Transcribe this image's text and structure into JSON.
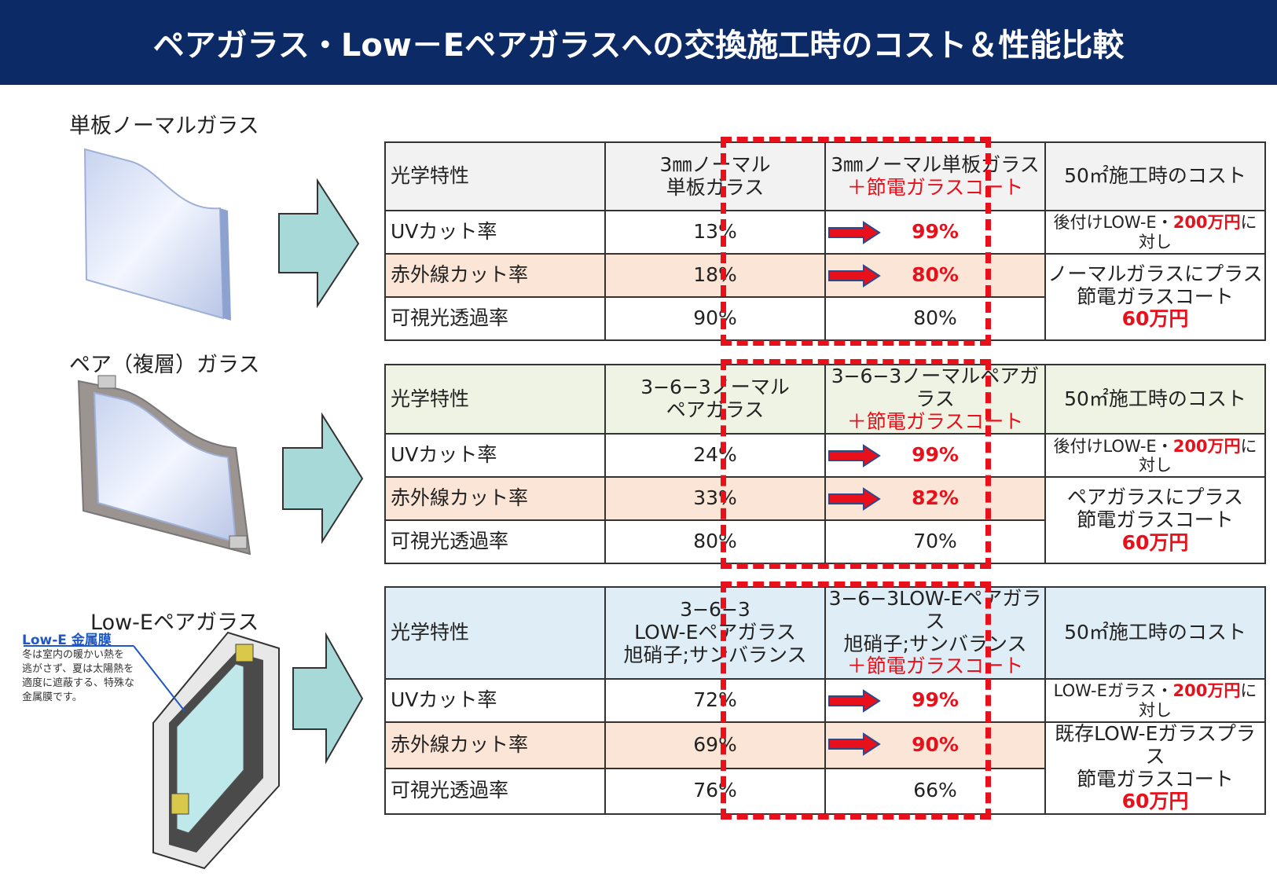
{
  "title": "ペアガラス・Low－Eペアガラスへの交換施工時のコスト＆性能比較",
  "sections": [
    {
      "label": "単板ノーマルガラス",
      "header": [
        "光学特性",
        [
          "3㎜ノーマル",
          "単板ガラス"
        ],
        [
          "3㎜ノーマル単板ガラス",
          "＋節電ガラスコート"
        ],
        "50㎡施工時のコスト"
      ],
      "rows": [
        [
          "UVカット率",
          "13%",
          "99%"
        ],
        [
          "赤外線カット率",
          "18%",
          "80%"
        ],
        [
          "可視光透過率",
          "90%",
          "80%"
        ]
      ],
      "cost_note": [
        "後付けLOW-E・",
        "200万円",
        "に対し"
      ],
      "cost": [
        "ノーマルガラスにプラス",
        "節電ガラスコート",
        "60万円"
      ]
    },
    {
      "label": "ペア（複層）ガラス",
      "header": [
        "光学特性",
        [
          "3−6−3ノーマル",
          "ペアガラス"
        ],
        [
          "3−6−3ノーマルペアガラス",
          "＋節電ガラスコート"
        ],
        "50㎡施工時のコスト"
      ],
      "rows": [
        [
          "UVカット率",
          "24%",
          "99%"
        ],
        [
          "赤外線カット率",
          "33%",
          "82%"
        ],
        [
          "可視光透過率",
          "80%",
          "70%"
        ]
      ],
      "cost_note": [
        "後付けLOW-E・",
        "200万円",
        "に対し"
      ],
      "cost": [
        "ペアガラスにプラス",
        "節電ガラスコート",
        "60万円"
      ]
    },
    {
      "label": "Low-Eペアガラス",
      "header": [
        "光学特性",
        [
          "3−6−3",
          "LOW-Eペアガラス",
          "旭硝子;サンバランス"
        ],
        [
          "3−6−3LOW-Eペアガラス",
          "旭硝子;サンバランス",
          "＋節電ガラスコート"
        ],
        "50㎡施工時のコスト"
      ],
      "rows": [
        [
          "UVカット率",
          "72%",
          "99%"
        ],
        [
          "赤外線カット率",
          "69%",
          "90%"
        ],
        [
          "可視光透過率",
          "76%",
          "66%"
        ]
      ],
      "cost_note": [
        "LOW-Eガラス・",
        "200万円",
        "に対し"
      ],
      "cost": [
        "既存LOW-Eガラスプラス",
        "節電ガラスコート",
        "60万円"
      ]
    }
  ],
  "lowe_note": {
    "title": "Low-E 金属膜",
    "lines": [
      "冬は室内の暖かい熱を",
      "逃がさず、夏は太陽熱を",
      "適度に遮蔽する、特殊な",
      "金属膜です。"
    ]
  }
}
